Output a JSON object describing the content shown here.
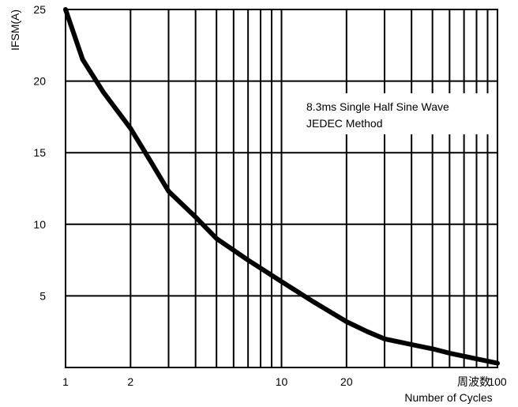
{
  "chart_data": {
    "type": "line",
    "x_scale": "log",
    "y_scale": "linear",
    "xlim": [
      1,
      100
    ],
    "ylim": [
      0,
      25
    ],
    "ylabel": "IFSM(A)",
    "xlabel_cn": "周波数",
    "xlabel": "Number of Cycles",
    "x_ticks": [
      1,
      2,
      10,
      20,
      100
    ],
    "x_tick_labels": [
      "1",
      "2",
      "10",
      "20",
      "100"
    ],
    "y_ticks": [
      5,
      10,
      15,
      20,
      25
    ],
    "y_tick_labels": [
      "5",
      "10",
      "15",
      "20",
      "25"
    ],
    "grid": true,
    "annotations": [
      "8.3ms Single Half Sine Wave",
      "JEDEC Method"
    ],
    "series": [
      {
        "x": [
          1,
          1.2,
          1.5,
          2,
          2.5,
          3,
          4,
          5,
          7,
          10,
          14,
          20,
          25,
          30,
          40,
          50,
          60,
          80,
          100
        ],
        "y": [
          25,
          21.5,
          19.2,
          16.7,
          14.3,
          12.3,
          10.5,
          9.0,
          7.5,
          6.0,
          4.6,
          3.2,
          2.5,
          2.0,
          1.6,
          1.3,
          1.0,
          0.6,
          0.3
        ]
      }
    ],
    "line_color": "#000000"
  }
}
